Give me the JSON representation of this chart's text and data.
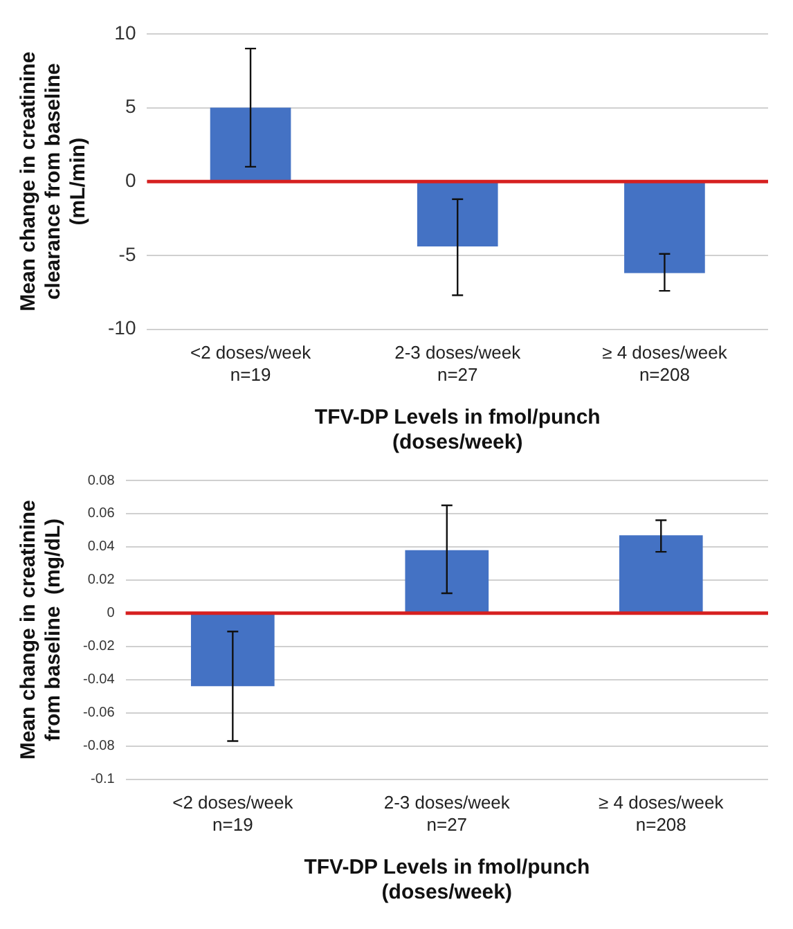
{
  "chart_data": [
    {
      "type": "bar",
      "categories": [
        "<2 doses/week\nn=19",
        "2-3 doses/week\nn=27",
        "≥ 4 doses/week\nn=208"
      ],
      "values": [
        5,
        -4.4,
        -6.2
      ],
      "errors": [
        [
          1,
          9
        ],
        [
          -7.7,
          -1.2
        ],
        [
          -7.4,
          -4.9
        ]
      ],
      "color": "#4472c4",
      "ylabel": "Mean change in creatinine\nclearance from baseline\n(mL/min)",
      "xlabel": "TFV-DP Levels in fmol/punch\n(doses/week)",
      "ylim": [
        -10,
        10
      ],
      "yticks": [
        -10,
        -5,
        0,
        5,
        10
      ],
      "grid": "y",
      "legend": false,
      "ref_lines": [
        {
          "axis": "y",
          "value": 0,
          "color": "#d62020"
        }
      ]
    },
    {
      "type": "bar",
      "categories": [
        "<2 doses/week\nn=19",
        "2-3 doses/week\nn=27",
        "≥ 4 doses/week\nn=208"
      ],
      "values": [
        -0.044,
        0.038,
        0.047
      ],
      "errors": [
        [
          -0.077,
          -0.011
        ],
        [
          0.012,
          0.065
        ],
        [
          0.037,
          0.056
        ]
      ],
      "color": "#4472c4",
      "ylabel": "Mean change in creatinine\nfrom baseline  (mg/dL)",
      "xlabel": "TFV-DP Levels in fmol/punch\n(doses/week)",
      "ylim": [
        -0.1,
        0.08
      ],
      "yticks": [
        -0.1,
        -0.08,
        -0.06,
        -0.04,
        -0.02,
        0,
        0.02,
        0.04,
        0.06,
        0.08
      ],
      "grid": "y",
      "legend": false,
      "ref_lines": [
        {
          "axis": "y",
          "value": 0,
          "color": "#d62020"
        }
      ]
    }
  ]
}
